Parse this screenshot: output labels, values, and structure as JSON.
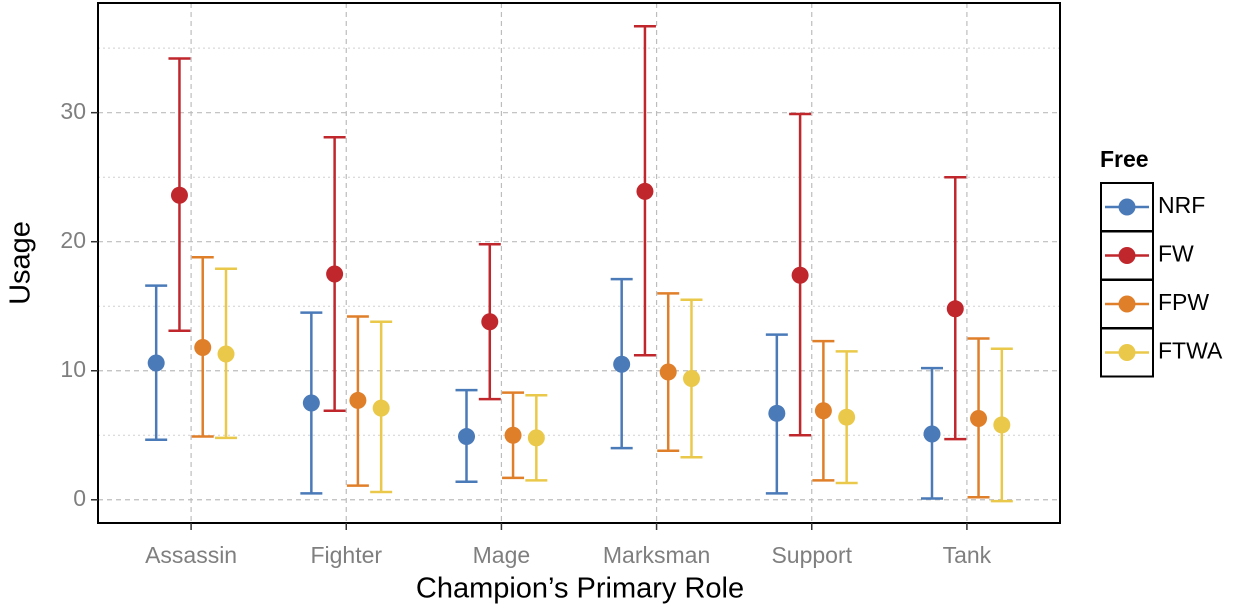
{
  "chart_data": {
    "type": "errorbar",
    "x_label": "Champion’s Primary Role",
    "y_label": "Usage",
    "legend_title": "Free",
    "legend_position": "right",
    "grid": true,
    "categories": [
      "Assassin",
      "Fighter",
      "Mage",
      "Marksman",
      "Support",
      "Tank"
    ],
    "ylim": [
      -1.8,
      38.5
    ],
    "yticks": [
      0,
      10,
      20,
      30
    ],
    "y_minor_ticks": [
      5,
      15,
      25,
      35
    ],
    "series": [
      {
        "name": "NRF",
        "color": "#4a7ab8",
        "values": [
          10.6,
          7.5,
          4.9,
          10.5,
          6.7,
          5.1
        ],
        "upper": [
          16.6,
          14.5,
          8.5,
          17.1,
          12.8,
          10.2
        ],
        "lower": [
          4.65,
          0.5,
          1.4,
          4.0,
          0.5,
          0.1
        ]
      },
      {
        "name": "FW",
        "color": "#c0272d",
        "values": [
          23.6,
          17.5,
          13.8,
          23.9,
          17.4,
          14.8
        ],
        "upper": [
          34.2,
          28.1,
          19.8,
          36.7,
          29.9,
          25.0
        ],
        "lower": [
          13.1,
          6.9,
          7.8,
          11.2,
          5.0,
          4.7
        ]
      },
      {
        "name": "FPW",
        "color": "#e07f2a",
        "values": [
          11.8,
          7.7,
          5.0,
          9.9,
          6.9,
          6.3
        ],
        "upper": [
          18.8,
          14.2,
          8.3,
          16.0,
          12.3,
          12.5
        ],
        "lower": [
          4.9,
          1.1,
          1.7,
          3.8,
          1.5,
          0.2
        ]
      },
      {
        "name": "FTWA",
        "color": "#eac94a",
        "values": [
          11.3,
          7.1,
          4.8,
          9.4,
          6.4,
          5.8
        ],
        "upper": [
          17.9,
          13.8,
          8.1,
          15.5,
          11.5,
          11.7
        ],
        "lower": [
          4.8,
          0.6,
          1.5,
          3.3,
          1.3,
          -0.1
        ]
      }
    ]
  }
}
